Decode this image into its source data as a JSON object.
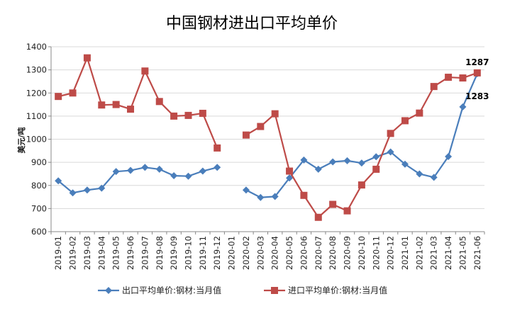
{
  "chart_data": {
    "type": "line",
    "title": "中国钢材进出口平均单价",
    "ylabel": "美元/吨",
    "xlabel": "",
    "ylim": [
      600,
      1400
    ],
    "yticks": [
      600,
      700,
      800,
      900,
      1000,
      1100,
      1200,
      1300,
      1400
    ],
    "grid": true,
    "legend_position": "bottom",
    "categories": [
      "2019-01",
      "2019-02",
      "2019-03",
      "2019-04",
      "2019-05",
      "2019-06",
      "2019-07",
      "2019-08",
      "2019-09",
      "2019-10",
      "2019-11",
      "2019-12",
      "2020-01",
      "2020-02",
      "2020-03",
      "2020-04",
      "2020-05",
      "2020-06",
      "2020-07",
      "2020-08",
      "2020-09",
      "2020-10",
      "2020-11",
      "2020-12",
      "2021-01",
      "2021-02",
      "2021-03",
      "2021-04",
      "2021-05",
      "2021-06"
    ],
    "series": [
      {
        "name": "出口平均单价:钢材:当月值",
        "color": "#4a7ebb",
        "marker": "diamond",
        "values": [
          820,
          768,
          780,
          788,
          860,
          865,
          878,
          870,
          842,
          840,
          862,
          878,
          null,
          780,
          748,
          752,
          832,
          910,
          870,
          902,
          907,
          897,
          924,
          945,
          892,
          850,
          835,
          925,
          1140,
          1283
        ]
      },
      {
        "name": "进口平均单价:钢材:当月值",
        "color": "#be4b48",
        "marker": "square",
        "values": [
          1185,
          1200,
          1352,
          1148,
          1150,
          1130,
          1295,
          1163,
          1100,
          1103,
          1112,
          962,
          null,
          1018,
          1055,
          1110,
          862,
          757,
          662,
          718,
          690,
          802,
          870,
          1025,
          1080,
          1113,
          1228,
          1268,
          1265,
          1287
        ]
      }
    ],
    "annotations": [
      {
        "text": "1287",
        "series": 1,
        "index": 29
      },
      {
        "text": "1283",
        "series": 0,
        "index": 29
      }
    ]
  }
}
